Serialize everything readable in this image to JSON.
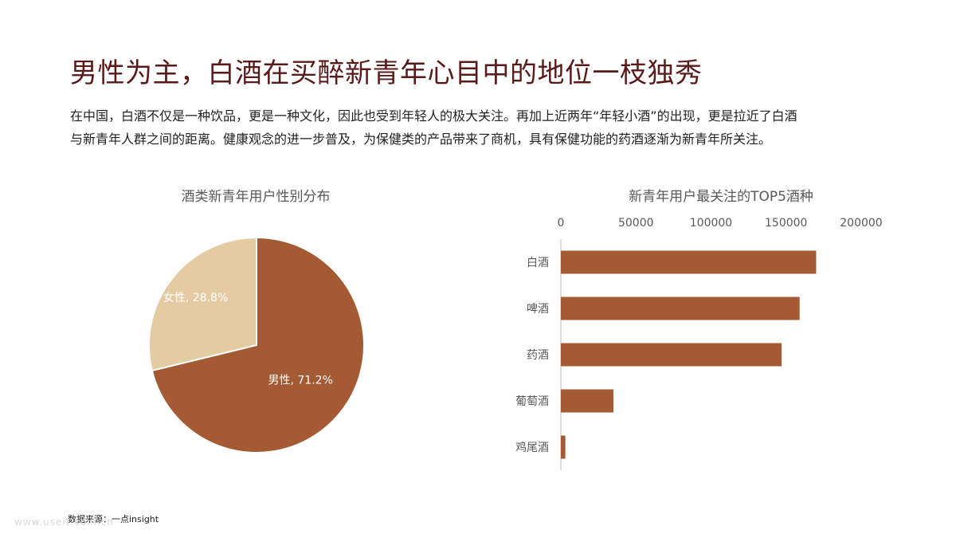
{
  "title": "男性为主，白酒在买醉新青年心目中的地位一枝独秀",
  "intro": {
    "line1": "在中国，白酒不仅是一种饮品，更是一种文化，因此也受到年轻人的极大关注。再加上近两年“年轻小酒”的出现，更是拉近了白酒",
    "line2": "与新青年人群之间的距离。健康观念的进一步普及，为保健类的产品带来了商机，具有保健功能的药酒逐渐为新青年所关注。"
  },
  "source": "数据来源：一点insight",
  "watermark": "www.useit.com.cn",
  "colors": {
    "title": "#5a1a1a",
    "primary": "#a45a32",
    "secondary": "#e5cba2",
    "axis_text": "#595959",
    "axis_line": "#bfbfbf"
  },
  "chart_data": [
    {
      "type": "pie",
      "title": "酒类新青年用户性别分布",
      "slices": [
        {
          "label": "男性",
          "value": 71.2,
          "display": "男性, 71.2%",
          "color": "#a45a32"
        },
        {
          "label": "女性",
          "value": 28.8,
          "display": "女性, 28.8%",
          "color": "#e5cba2"
        }
      ]
    },
    {
      "type": "bar",
      "orientation": "horizontal",
      "title": "新青年用户最关注的TOP5酒种",
      "categories": [
        "白酒",
        "啤酒",
        "药酒",
        "葡萄酒",
        "鸡尾酒"
      ],
      "values": [
        170000,
        159000,
        147000,
        35000,
        3000
      ],
      "xlim": [
        0,
        200000
      ],
      "xticks": [
        "0",
        "50000",
        "100000",
        "150000",
        "200000"
      ],
      "xtick_values": [
        0,
        50000,
        100000,
        150000,
        200000
      ],
      "axis_position": "top",
      "grid": false,
      "color": "#a45a32"
    }
  ]
}
